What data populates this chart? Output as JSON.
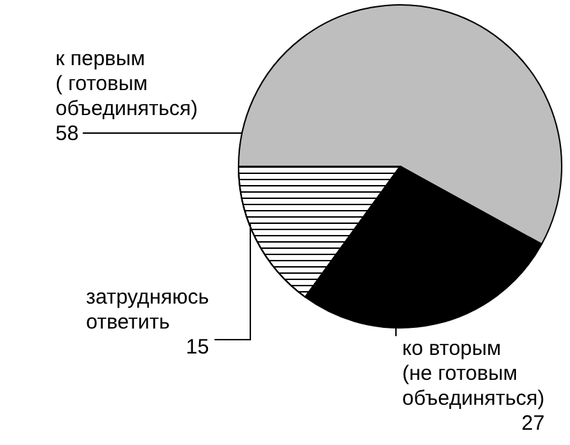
{
  "chart_data": {
    "type": "pie",
    "categories": [
      "к первым ( готовым объединяться)",
      "ко вторым (не готовым объединяться)",
      "затрудняюсь ответить"
    ],
    "values": [
      58,
      27,
      15
    ],
    "colors": [
      "#bebebe",
      "#000000",
      "#ffffff"
    ],
    "data_labels": true,
    "legend": false
  }
}
